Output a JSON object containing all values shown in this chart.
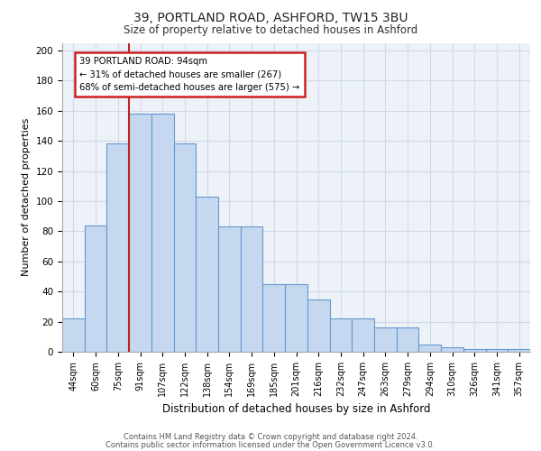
{
  "title_line1": "39, PORTLAND ROAD, ASHFORD, TW15 3BU",
  "title_line2": "Size of property relative to detached houses in Ashford",
  "xlabel": "Distribution of detached houses by size in Ashford",
  "ylabel": "Number of detached properties",
  "categories": [
    "44sqm",
    "60sqm",
    "75sqm",
    "91sqm",
    "107sqm",
    "122sqm",
    "138sqm",
    "154sqm",
    "169sqm",
    "185sqm",
    "201sqm",
    "216sqm",
    "232sqm",
    "247sqm",
    "263sqm",
    "279sqm",
    "294sqm",
    "310sqm",
    "326sqm",
    "341sqm",
    "357sqm"
  ],
  "values": [
    22,
    84,
    138,
    158,
    158,
    138,
    103,
    83,
    83,
    45,
    45,
    35,
    22,
    22,
    16,
    16,
    5,
    3,
    2,
    2,
    2
  ],
  "bar_color": "#c5d8f0",
  "bar_edge_color": "#6699cc",
  "annotation_text_line1": "39 PORTLAND ROAD: 94sqm",
  "annotation_text_line2": "← 31% of detached houses are smaller (267)",
  "annotation_text_line3": "68% of semi-detached houses are larger (575) →",
  "annotation_box_facecolor": "#ffffff",
  "annotation_box_edgecolor": "#cc2222",
  "vline_color": "#bb2222",
  "vline_x_index": 3,
  "ylim": [
    0,
    205
  ],
  "yticks": [
    0,
    20,
    40,
    60,
    80,
    100,
    120,
    140,
    160,
    180,
    200
  ],
  "grid_color": "#d0d8e8",
  "bg_color": "#edf2f9",
  "footer_line1": "Contains HM Land Registry data © Crown copyright and database right 2024.",
  "footer_line2": "Contains public sector information licensed under the Open Government Licence v3.0."
}
